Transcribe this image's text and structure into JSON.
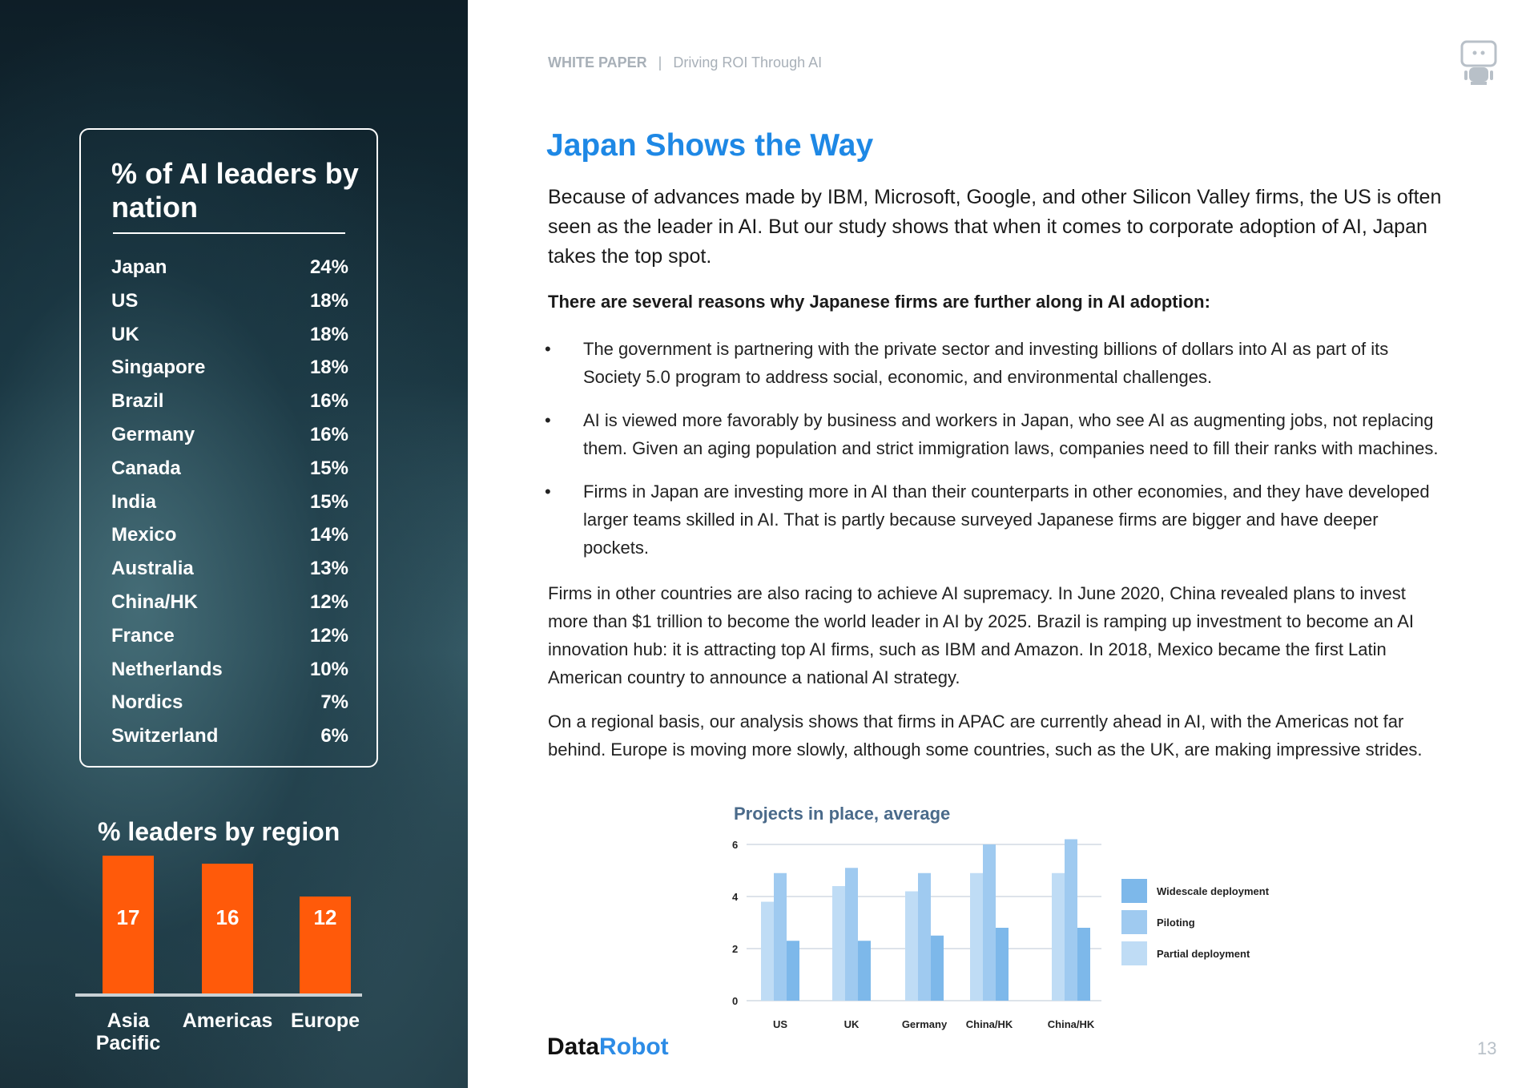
{
  "sidebar": {
    "nation_title": "% of AI leaders by nation",
    "nations": [
      {
        "name": "Japan",
        "pct": "24%"
      },
      {
        "name": "US",
        "pct": "18%"
      },
      {
        "name": "UK",
        "pct": "18%"
      },
      {
        "name": "Singapore",
        "pct": "18%"
      },
      {
        "name": "Brazil",
        "pct": "16%"
      },
      {
        "name": "Germany",
        "pct": "16%"
      },
      {
        "name": "Canada",
        "pct": "15%"
      },
      {
        "name": "India",
        "pct": "15%"
      },
      {
        "name": "Mexico",
        "pct": "14%"
      },
      {
        "name": "Australia",
        "pct": "13%"
      },
      {
        "name": "China/HK",
        "pct": "12%"
      },
      {
        "name": "France",
        "pct": "12%"
      },
      {
        "name": "Netherlands",
        "pct": "10%"
      },
      {
        "name": "Nordics",
        "pct": "7%"
      },
      {
        "name": "Switzerland",
        "pct": "6%"
      }
    ],
    "region_title": "% leaders by region",
    "regions": [
      {
        "name": "Asia Pacific",
        "value": 17
      },
      {
        "name": "Americas",
        "value": 16
      },
      {
        "name": "Europe",
        "value": 12
      }
    ],
    "bar_color": "#ff5a0a"
  },
  "header": {
    "label": "WHITE PAPER",
    "separator": "|",
    "subtitle": "Driving ROI Through AI"
  },
  "main": {
    "title": "Japan Shows the Way",
    "intro": "Because of advances made by IBM, Microsoft, Google, and other Silicon Valley firms, the US is often seen as the leader in AI. But our study shows that when it comes to corporate adoption of AI, Japan takes the top spot.",
    "lead": "There are several reasons why Japanese firms are further along in AI adoption:",
    "bullet_char": "•",
    "bullets": [
      "The government is partnering with the private sector and investing billions of dollars into AI as part  of its Society 5.0 program to address social, economic, and environmental challenges.",
      "AI is viewed more favorably by business and workers in Japan, who see AI as augmenting jobs, not replacing them. Given an aging population and strict immigration laws, companies need to  fill their ranks with machines.",
      "Firms in Japan are investing more in AI than their counterparts in other economies, and they have developed larger teams skilled in AI. That is partly because surveyed Japanese firms are bigger and have deeper pockets."
    ],
    "para1": "Firms in other countries are also racing to achieve AI supremacy. In June 2020, China revealed plans to invest more than $1 trillion to become the world leader in AI by 2025. Brazil is ramping up investment to become an AI innovation hub: it is attracting top AI firms, such as IBM and Amazon. In 2018, Mexico became the first Latin American country to announce a national AI strategy.",
    "para2": "On a regional basis, our analysis shows that firms in APAC are currently ahead in AI, with the Americas not far behind. Europe is moving more slowly, although some countries, such as the UK, are making impressive strides."
  },
  "chart_data": {
    "type": "bar",
    "title": "Projects in place, average",
    "categories": [
      "US",
      "UK",
      "Germany",
      "China/HK",
      "China/HK"
    ],
    "series": [
      {
        "name": "Partial deployment",
        "color": "#bfdcf5",
        "values": [
          3.8,
          4.4,
          4.2,
          4.9,
          4.9
        ]
      },
      {
        "name": "Piloting",
        "color": "#9fcaf0",
        "values": [
          4.9,
          5.1,
          4.9,
          6.0,
          6.2
        ]
      },
      {
        "name": "Widescale deployment",
        "color": "#7db8ea",
        "values": [
          2.3,
          2.3,
          2.5,
          2.8,
          2.8
        ]
      }
    ],
    "legend_order": [
      "Widescale deployment",
      "Piloting",
      "Partial deployment"
    ],
    "yticks": [
      "0",
      "2",
      "4",
      "6"
    ],
    "ylim": [
      0,
      6.4
    ],
    "grid": true,
    "legend": "right"
  },
  "footer": {
    "logo_a": "Data",
    "logo_b": "Robot",
    "page": "13"
  }
}
